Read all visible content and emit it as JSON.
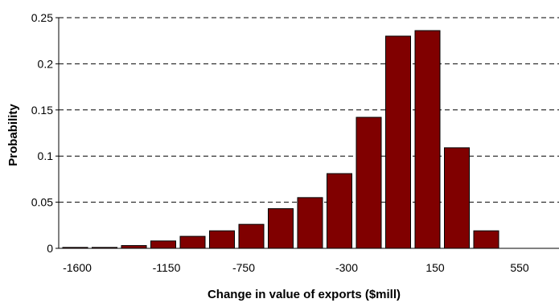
{
  "chart_data": {
    "type": "bar",
    "title": "",
    "xlabel": "Change in value of exports ($mill)",
    "ylabel": "Probability",
    "ylim": [
      0,
      0.25
    ],
    "yticks": [
      "0",
      "0.05",
      "0.1",
      "0.15",
      "0.2",
      "0.25"
    ],
    "xticks": [
      {
        "label": "-1600",
        "value": -1600
      },
      {
        "label": "-1150",
        "value": -1150
      },
      {
        "label": "-750",
        "value": -750
      },
      {
        "label": "-300",
        "value": -300
      },
      {
        "label": "150",
        "value": 150
      },
      {
        "label": "550",
        "value": 550
      }
    ],
    "bin_width": 100,
    "bar_color": "#800000",
    "grid": "horizontal-dashed",
    "bins": [
      {
        "x": -1600,
        "value": 0.001
      },
      {
        "x": -1500,
        "value": 0.001
      },
      {
        "x": -1400,
        "value": 0.003
      },
      {
        "x": -1300,
        "value": 0.008
      },
      {
        "x": -1200,
        "value": 0.013
      },
      {
        "x": -1100,
        "value": 0.019
      },
      {
        "x": -1000,
        "value": 0.026
      },
      {
        "x": -900,
        "value": 0.043
      },
      {
        "x": -800,
        "value": 0.055
      },
      {
        "x": -700,
        "value": 0.081
      },
      {
        "x": -600,
        "value": 0.142
      },
      {
        "x": -500,
        "value": 0.23
      },
      {
        "x": -400,
        "value": 0.236
      },
      {
        "x": -300,
        "value": 0.109
      },
      {
        "x": -200,
        "value": 0.019
      }
    ]
  }
}
